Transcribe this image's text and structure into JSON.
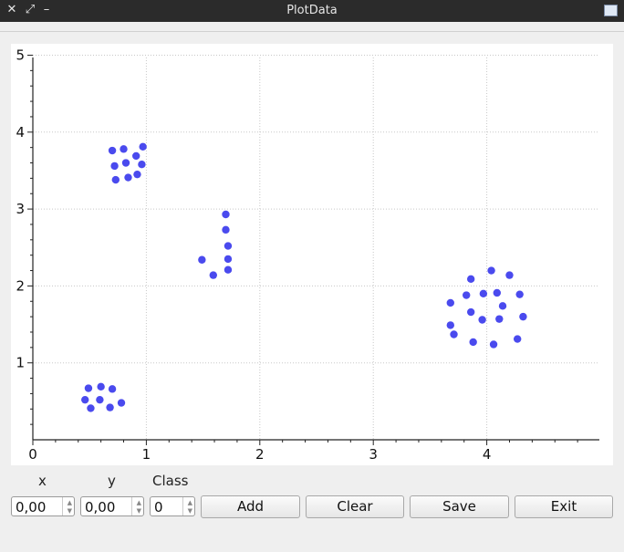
{
  "window": {
    "title": "PlotData"
  },
  "icons": {
    "close": "close-icon",
    "maximize": "maximize-icon",
    "minimize": "minimize-icon",
    "app": "app-menu-icon"
  },
  "colors": {
    "titlebar": "#2b2b2b",
    "point": "#4a4aee",
    "background": "#efefef"
  },
  "form": {
    "x_label": "x",
    "y_label": "y",
    "class_label": "Class",
    "x_value": "0,00",
    "y_value": "0,00",
    "class_value": "0"
  },
  "buttons": {
    "add": "Add",
    "clear": "Clear",
    "save": "Save",
    "exit": "Exit"
  },
  "chart_data": {
    "type": "scatter",
    "xlim": [
      0,
      5
    ],
    "ylim": [
      0,
      5
    ],
    "x_ticks": [
      "0",
      "1",
      "2",
      "3",
      "4"
    ],
    "y_ticks": [
      "1",
      "2",
      "3",
      "4",
      "5"
    ],
    "grid": true,
    "points": [
      [
        0.7,
        3.76
      ],
      [
        0.8,
        3.78
      ],
      [
        0.97,
        3.81
      ],
      [
        0.72,
        3.56
      ],
      [
        0.82,
        3.6
      ],
      [
        0.91,
        3.69
      ],
      [
        0.96,
        3.58
      ],
      [
        0.73,
        3.38
      ],
      [
        0.84,
        3.41
      ],
      [
        0.92,
        3.45
      ],
      [
        1.7,
        2.93
      ],
      [
        1.7,
        2.73
      ],
      [
        1.72,
        2.52
      ],
      [
        1.49,
        2.34
      ],
      [
        1.72,
        2.35
      ],
      [
        1.59,
        2.14
      ],
      [
        1.72,
        2.21
      ],
      [
        0.49,
        0.67
      ],
      [
        0.6,
        0.69
      ],
      [
        0.7,
        0.66
      ],
      [
        0.46,
        0.52
      ],
      [
        0.59,
        0.52
      ],
      [
        0.51,
        0.41
      ],
      [
        0.68,
        0.42
      ],
      [
        0.78,
        0.48
      ],
      [
        4.04,
        2.2
      ],
      [
        3.86,
        2.09
      ],
      [
        4.2,
        2.14
      ],
      [
        3.82,
        1.88
      ],
      [
        3.97,
        1.9
      ],
      [
        4.09,
        1.91
      ],
      [
        4.29,
        1.89
      ],
      [
        3.68,
        1.78
      ],
      [
        4.14,
        1.74
      ],
      [
        3.86,
        1.66
      ],
      [
        3.96,
        1.56
      ],
      [
        4.11,
        1.57
      ],
      [
        4.32,
        1.6
      ],
      [
        3.68,
        1.49
      ],
      [
        3.71,
        1.37
      ],
      [
        3.88,
        1.27
      ],
      [
        4.06,
        1.24
      ],
      [
        4.27,
        1.31
      ]
    ]
  }
}
